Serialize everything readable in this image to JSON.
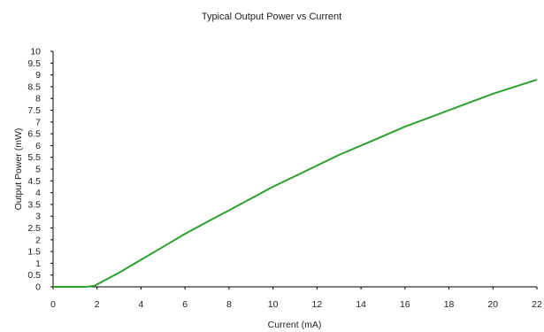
{
  "chart_data": {
    "type": "line",
    "title": "Typical Output Power vs Current",
    "xlabel": "Current (mA)",
    "ylabel": "Output Power (mW)",
    "xlim": [
      0,
      22
    ],
    "ylim": [
      0,
      10
    ],
    "xticks": [
      0,
      2,
      4,
      6,
      8,
      10,
      12,
      14,
      16,
      18,
      20,
      22
    ],
    "yticks": [
      0,
      0.5,
      1,
      1.5,
      2,
      2.5,
      3,
      3.5,
      4,
      4.5,
      5,
      5.5,
      6,
      6.5,
      7,
      7.5,
      8,
      8.5,
      9,
      9.5,
      10
    ],
    "grid": false,
    "legend": "none",
    "line_color": "#2ca02c",
    "series": [
      {
        "x": [
          0,
          1.5,
          1.9,
          2,
          3,
          4,
          5,
          6,
          7,
          8,
          9,
          10,
          11,
          12,
          13,
          14,
          15,
          16,
          17,
          18,
          19,
          20,
          21,
          22
        ],
        "y": [
          0,
          0,
          0.05,
          0.1,
          0.6,
          1.15,
          1.7,
          2.25,
          2.75,
          3.25,
          3.75,
          4.25,
          4.7,
          5.15,
          5.6,
          6.0,
          6.4,
          6.8,
          7.15,
          7.5,
          7.85,
          8.2,
          8.5,
          8.8
        ]
      }
    ]
  }
}
